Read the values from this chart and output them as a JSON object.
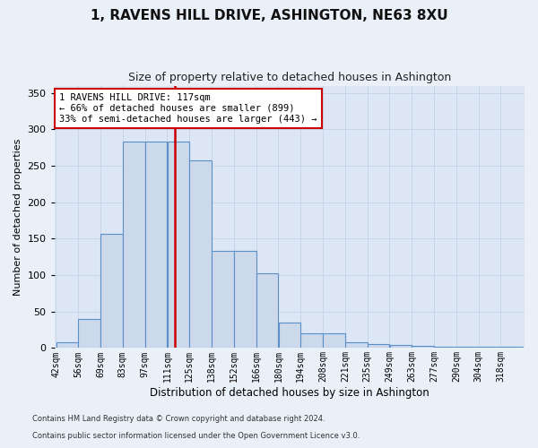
{
  "title": "1, RAVENS HILL DRIVE, ASHINGTON, NE63 8XU",
  "subtitle": "Size of property relative to detached houses in Ashington",
  "xlabel": "Distribution of detached houses by size in Ashington",
  "ylabel": "Number of detached properties",
  "bar_labels": [
    "42sqm",
    "56sqm",
    "69sqm",
    "83sqm",
    "97sqm",
    "111sqm",
    "125sqm",
    "138sqm",
    "152sqm",
    "166sqm",
    "180sqm",
    "194sqm",
    "208sqm",
    "221sqm",
    "235sqm",
    "249sqm",
    "263sqm",
    "277sqm",
    "290sqm",
    "304sqm",
    "318sqm"
  ],
  "bar_values": [
    8,
    40,
    157,
    283,
    283,
    283,
    257,
    133,
    133,
    103,
    35,
    20,
    20,
    8,
    6,
    4,
    3,
    2,
    2,
    2,
    2
  ],
  "bar_color": "#ccd9ea",
  "bar_edge_color": "#5b8fc9",
  "property_line_x": 5,
  "annotation_text": "1 RAVENS HILL DRIVE: 117sqm\n← 66% of detached houses are smaller (899)\n33% of semi-detached houses are larger (443) →",
  "annotation_box_color": "#ffffff",
  "annotation_box_edge": "#cc0000",
  "vline_color": "#cc0000",
  "ylim": [
    0,
    360
  ],
  "yticks": [
    0,
    50,
    100,
    150,
    200,
    250,
    300,
    350
  ],
  "grid_color": "#c8d4e8",
  "bg_color": "#dce6f5",
  "fig_bg_color": "#eaf0f8",
  "footer1": "Contains HM Land Registry data © Crown copyright and database right 2024.",
  "footer2": "Contains public sector information licensed under the Open Government Licence v3.0."
}
